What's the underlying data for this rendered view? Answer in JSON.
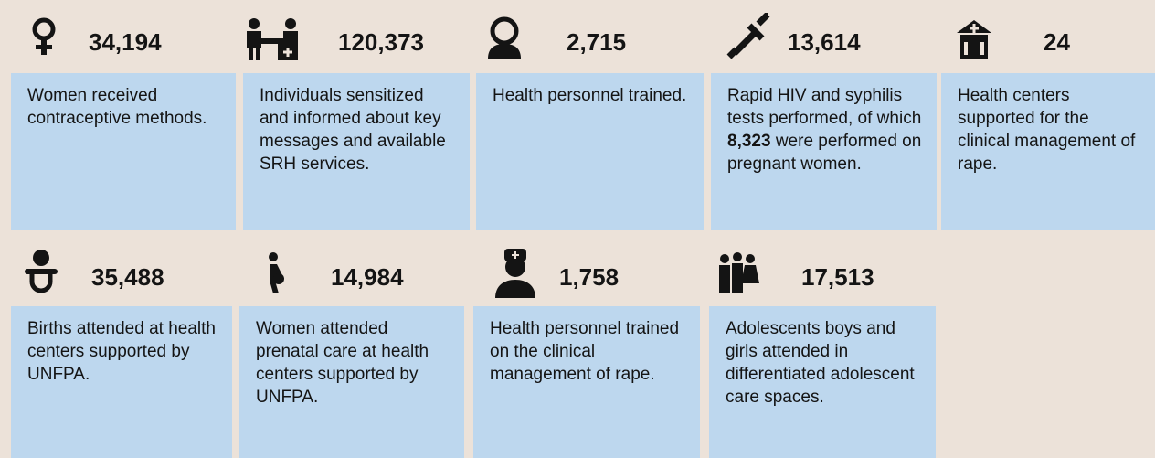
{
  "cards": [
    {
      "number": "34,194",
      "description": "Women received contraceptive methods."
    },
    {
      "number": "120,373",
      "description": "Individuals sensitized and informed about key messages and available SRH services."
    },
    {
      "number": "2,715",
      "description": "Health personnel trained."
    },
    {
      "number": "13,614",
      "description": {
        "before": "Rapid HIV and syphilis tests performed, of which ",
        "bold": "8,323",
        "after": " were performed on pregnant women."
      }
    },
    {
      "number": "24",
      "description": "Health centers supported for the clinical management of rape."
    },
    {
      "number": "35,488",
      "description": "Births attended at health centers supported by UNFPA."
    },
    {
      "number": "14,984",
      "description": "Women attended prenatal care at health centers supported by UNFPA."
    },
    {
      "number": "1,758",
      "description": "Health personnel trained on the clinical management of rape."
    },
    {
      "number": "17,513",
      "description": "Adolescents boys and girls attended in differentiated adolescent care spaces."
    }
  ]
}
